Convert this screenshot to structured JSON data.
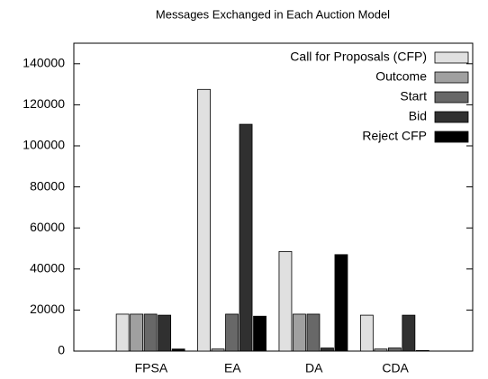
{
  "chart_data": {
    "type": "bar",
    "title": "Messages Exchanged in Each Auction Model",
    "categories": [
      "FPSA",
      "EA",
      "DA",
      "CDA"
    ],
    "series": [
      {
        "name": "Call for Proposals (CFP)",
        "color": "#e0e0e0",
        "values": [
          18000,
          127500,
          48500,
          17500
        ]
      },
      {
        "name": "Outcome",
        "color": "#a0a0a0",
        "values": [
          18000,
          1000,
          18000,
          1000
        ]
      },
      {
        "name": "Start",
        "color": "#686868",
        "values": [
          18000,
          18000,
          18000,
          1500
        ]
      },
      {
        "name": "Bid",
        "color": "#303030",
        "values": [
          17500,
          110500,
          1500,
          17500
        ]
      },
      {
        "name": "Reject CFP",
        "color": "#000000",
        "values": [
          1000,
          17000,
          47000,
          300
        ]
      }
    ],
    "ylim": [
      0,
      150000
    ],
    "yticks": [
      0,
      20000,
      40000,
      60000,
      80000,
      100000,
      120000,
      140000
    ],
    "legend": "top-right"
  }
}
